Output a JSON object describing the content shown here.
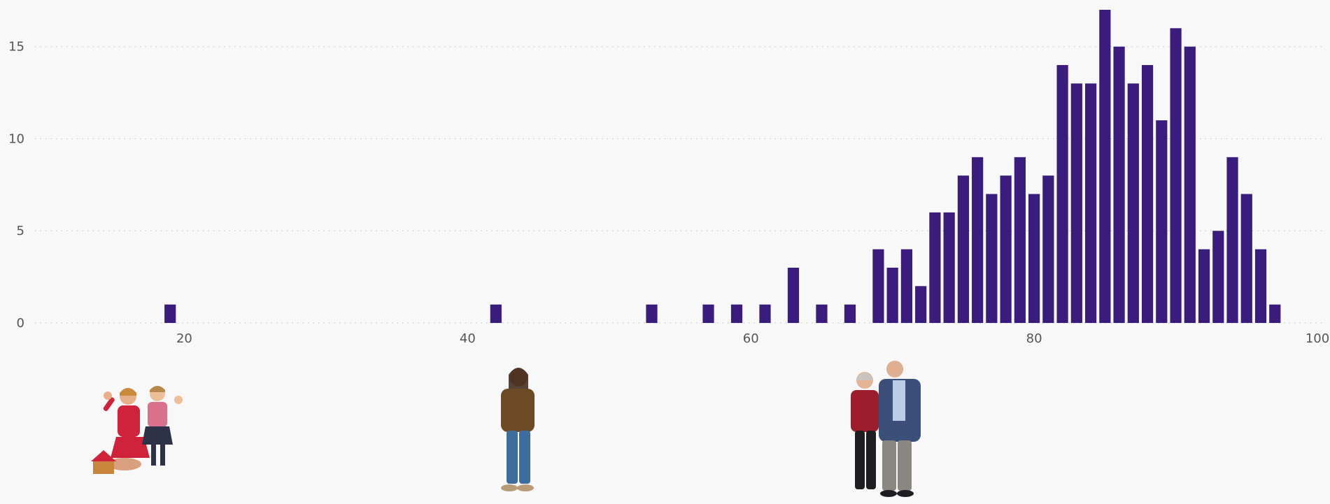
{
  "chart_data": {
    "type": "bar",
    "title": "",
    "xlabel": "",
    "ylabel": "",
    "xlim": [
      10,
      100
    ],
    "ylim": [
      0,
      17
    ],
    "x_ticks": [
      "20",
      "40",
      "60",
      "80",
      "100"
    ],
    "y_ticks": [
      "0",
      "5",
      "10",
      "15"
    ],
    "grid": "horizontal dotted",
    "colors": {
      "bar": "#3a1c7d",
      "background": "#f8f8f8",
      "tick_text": "#555555",
      "grid": "#c8c8c8"
    },
    "x": [
      19,
      42,
      53,
      57,
      59,
      61,
      63,
      65,
      67,
      69,
      70,
      71,
      72,
      73,
      74,
      75,
      76,
      77,
      78,
      79,
      80,
      81,
      82,
      83,
      84,
      85,
      86,
      87,
      88,
      89,
      90,
      91,
      92,
      93,
      94,
      95,
      96,
      97
    ],
    "values": [
      1,
      1,
      1,
      1,
      1,
      1,
      3,
      1,
      1,
      4,
      3,
      4,
      2,
      6,
      6,
      8,
      9,
      7,
      8,
      9,
      7,
      8,
      14,
      13,
      13,
      17,
      15,
      13,
      14,
      11,
      16,
      15,
      4,
      5,
      9,
      7,
      4,
      1
    ]
  },
  "illustrations": [
    {
      "name": "children-waving-icon",
      "x_value": 18
    },
    {
      "name": "young-adult-icon",
      "x_value": 41
    },
    {
      "name": "older-couple-icon",
      "x_value": 69
    }
  ]
}
